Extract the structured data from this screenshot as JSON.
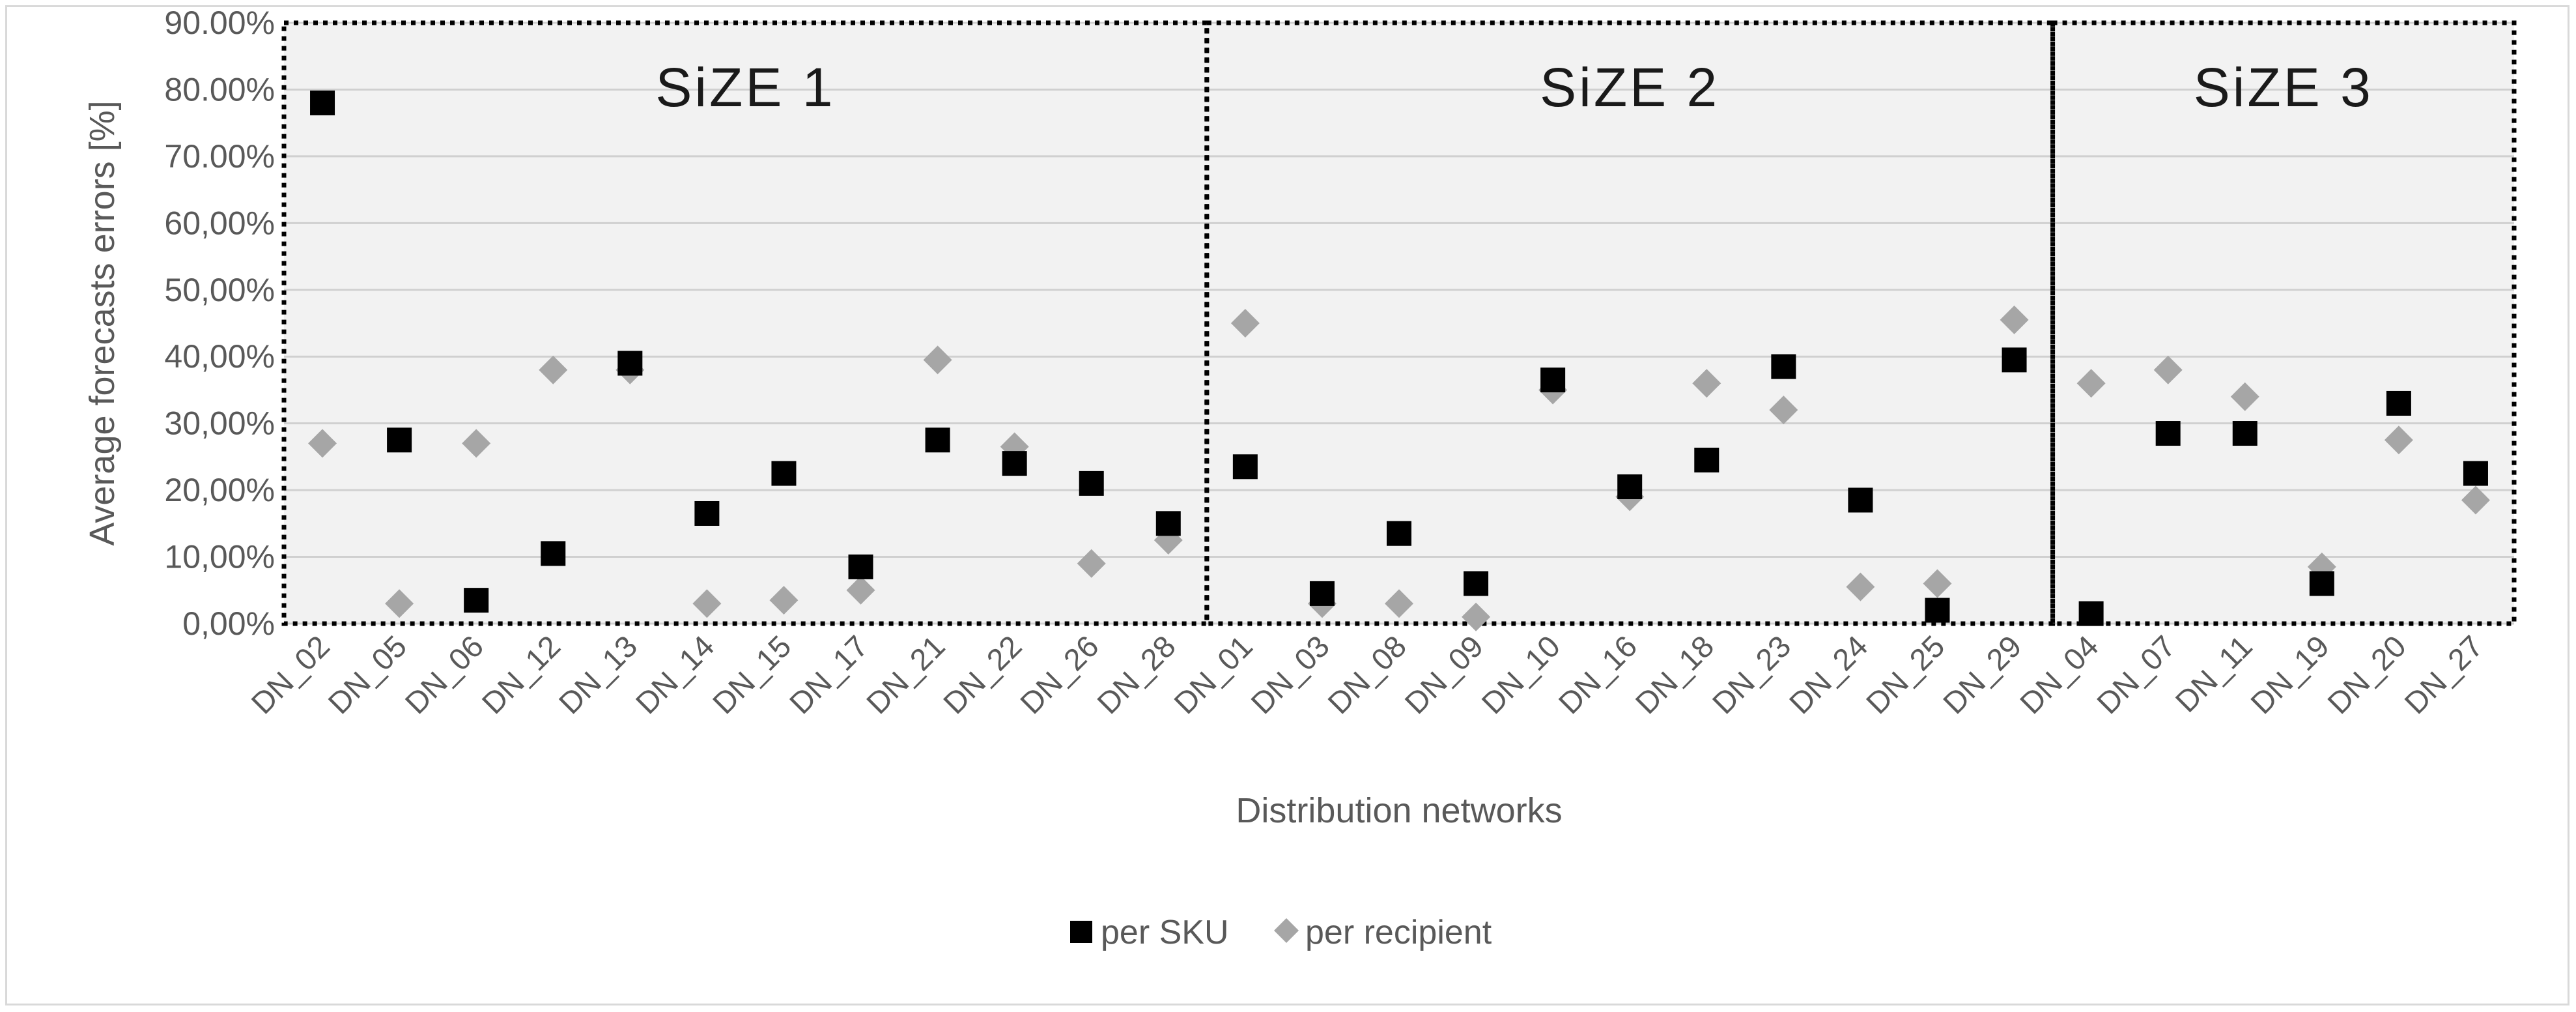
{
  "chart_data": {
    "type": "scatter",
    "xlabel": "Distribution networks",
    "ylabel": "Average forecasts errors [%]",
    "ylim": [
      0,
      90
    ],
    "y_ticks": [
      "0,00%",
      "10,00%",
      "20,00%",
      "30,00%",
      "40,00%",
      "50,00%",
      "60,00%",
      "70.00%",
      "80.00%",
      "90.00%"
    ],
    "categories": [
      "DN_02",
      "DN_05",
      "DN_06",
      "DN_12",
      "DN_13",
      "DN_14",
      "DN_15",
      "DN_17",
      "DN_21",
      "DN_22",
      "DN_26",
      "DN_28",
      "DN_01",
      "DN_03",
      "DN_08",
      "DN_09",
      "DN_10",
      "DN_16",
      "DN_18",
      "DN_23",
      "DN_24",
      "DN_25",
      "DN_29",
      "DN_04",
      "DN_07",
      "DN_11",
      "DN_19",
      "DN_20",
      "DN_27"
    ],
    "groups": [
      {
        "label": "SiZE 1",
        "start": 0,
        "end": 11
      },
      {
        "label": "SiZE 2",
        "start": 12,
        "end": 22
      },
      {
        "label": "SiZE 3",
        "start": 23,
        "end": 28
      }
    ],
    "series": [
      {
        "name": "per SKU",
        "marker": "square",
        "color": "#000000",
        "values": [
          78,
          27.5,
          3.5,
          10.5,
          39,
          16.5,
          22.5,
          8.5,
          27.5,
          24,
          21,
          15,
          23.5,
          4.5,
          13.5,
          6,
          36.5,
          20.5,
          24.5,
          38.5,
          18.5,
          2,
          39.5,
          1.5,
          28.5,
          28.5,
          6,
          33,
          22.5
        ]
      },
      {
        "name": "per recipient",
        "marker": "diamond",
        "color": "#a6a6a6",
        "values": [
          27,
          3,
          27,
          38,
          38,
          3,
          3.5,
          5,
          39.5,
          26.5,
          9,
          12.5,
          45,
          3,
          3,
          1,
          35,
          19,
          36,
          32,
          5.5,
          6,
          45.5,
          36,
          38,
          34,
          8.5,
          27.5,
          18.5
        ]
      }
    ],
    "legend": {
      "position": "bottom"
    }
  }
}
